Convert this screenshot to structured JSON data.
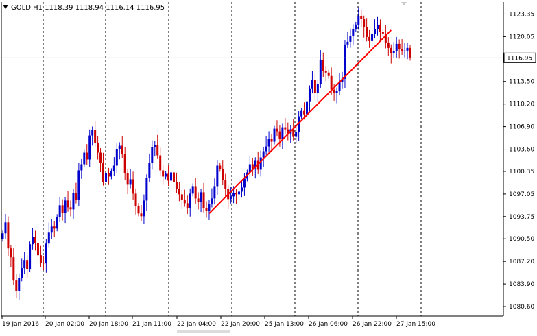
{
  "chart_data": {
    "type": "candlestick",
    "symbol": "GOLD,H1",
    "ohlc_readout": [
      "1118.39",
      "1118.94",
      "1116.14",
      "1116.95"
    ],
    "current_price": "1116.95",
    "ylim": [
      1079.2,
      1125.1
    ],
    "y_ticks": [
      "1123.35",
      "1120.05",
      "1116.65",
      "1113.50",
      "1110.20",
      "1106.90",
      "1103.60",
      "1100.35",
      "1097.05",
      "1093.75",
      "1090.50",
      "1087.20",
      "1083.90",
      "1080.60"
    ],
    "x_labels": [
      "19 Jan 2016",
      "20 Jan 02:00",
      "20 Jan 18:00",
      "21 Jan 11:00",
      "22 Jan 04:00",
      "22 Jan 20:00",
      "25 Jan 13:00",
      "26 Jan 06:00",
      "26 Jan 22:00",
      "27 Jan 15:00"
    ],
    "grid": "vertical dashed lines",
    "up_color": "#0000cc",
    "down_color": "#cc0000",
    "trendline_color": "#ff0000",
    "current_line_color": "#c0c0c0",
    "trendline": {
      "from_bar": 76,
      "from_price": 1094.2,
      "to_bar": 143,
      "to_price": 1121.0
    },
    "candles_close": [
      1091.3,
      1092.9,
      1089.1,
      1087.8,
      1084.4,
      1082.9,
      1084.8,
      1086.2,
      1087.4,
      1086.1,
      1089.7,
      1090.8,
      1089.9,
      1088.1,
      1087.0,
      1086.9,
      1089.8,
      1091.4,
      1092.3,
      1092.0,
      1093.7,
      1095.4,
      1094.3,
      1096.1,
      1095.1,
      1094.8,
      1097.2,
      1096.2,
      1100.5,
      1101.4,
      1103.1,
      1102.1,
      1105.6,
      1106.4,
      1104.5,
      1103.1,
      1101.6,
      1098.8,
      1100.1,
      1099.6,
      1100.4,
      1101.2,
      1103.6,
      1104.1,
      1102.9,
      1100.1,
      1098.4,
      1099.2,
      1097.1,
      1095.3,
      1094.2,
      1093.8,
      1096.1,
      1099.4,
      1101.6,
      1103.9,
      1104.2,
      1102.7,
      1100.5,
      1099.6,
      1100.0,
      1099.0,
      1100.2,
      1098.8,
      1097.8,
      1097.0,
      1096.2,
      1095.7,
      1095.0,
      1097.1,
      1098.2,
      1096.4,
      1095.9,
      1097.3,
      1095.0,
      1094.6,
      1095.6,
      1096.4,
      1098.2,
      1101.2,
      1100.7,
      1099.1,
      1097.8,
      1096.3,
      1096.7,
      1097.2,
      1097.0,
      1097.4,
      1098.0,
      1099.3,
      1100.2,
      1101.4,
      1100.8,
      1101.9,
      1100.6,
      1102.4,
      1103.3,
      1104.0,
      1105.1,
      1104.7,
      1106.6,
      1106.2,
      1105.1,
      1106.8,
      1106.5,
      1105.9,
      1106.5,
      1105.4,
      1106.1,
      1108.4,
      1109.2,
      1108.7,
      1110.5,
      1112.4,
      1113.7,
      1111.8,
      1113.1,
      1116.6,
      1115.0,
      1114.8,
      1114.3,
      1112.3,
      1111.8,
      1112.1,
      1113.4,
      1113.9,
      1118.9,
      1119.3,
      1120.1,
      1121.1,
      1121.8,
      1123.1,
      1122.6,
      1121.4,
      1120.0,
      1119.4,
      1120.4,
      1121.1,
      1121.8,
      1120.7,
      1120.5,
      1119.1,
      1118.4,
      1117.6,
      1117.9,
      1119.0,
      1118.2,
      1117.9,
      1118.0,
      1118.4,
      1116.95
    ]
  }
}
